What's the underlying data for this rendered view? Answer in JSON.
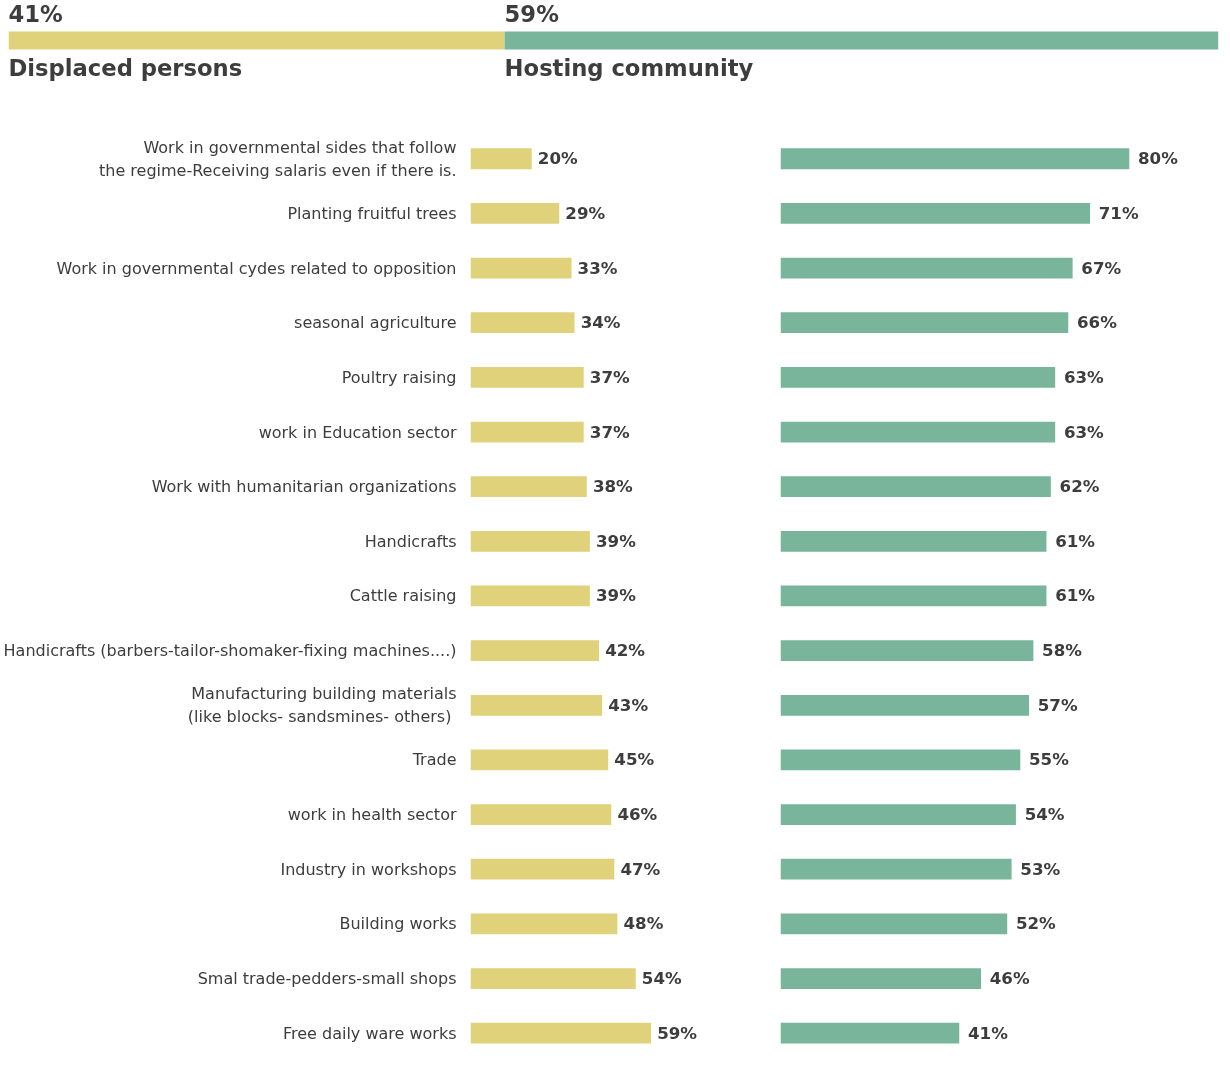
{
  "chart_data": [
    {
      "type": "bar",
      "orientation": "horizontal",
      "stacked": true,
      "categories": [
        null
      ],
      "tick_labels": false,
      "series": [
        {
          "name": "Displaced persons",
          "color": "#dfd27a",
          "values": [
            41
          ],
          "value_labels": [
            "41%"
          ]
        },
        {
          "name": "Hosting community",
          "color": "#78b59b",
          "values": [
            59
          ],
          "value_labels": [
            "59%"
          ]
        }
      ]
    },
    {
      "type": "bar",
      "orientation": "horizontal",
      "tick_labels": "y",
      "categories": [
        "Work in governmental sides that follow\nthe regime-Receiving salaris even if there is.",
        "Planting fruitful trees",
        "Work in governmental cydes related to opposition",
        "seasonal agriculture",
        "Poultry raising",
        "work in Education sector",
        "Work with humanitarian organizations",
        "Handicrafts",
        "Cattle raising",
        "Handicrafts (barbers-tailor-shomaker-fixing machines....)",
        "Manufacturing building materials\n(like blocks-  sandsmines- others)",
        "Trade",
        "work in health sector",
        "Industry in workshops",
        "Building works",
        "Smal trade-pedders-small shops",
        "Free daily ware works"
      ],
      "series": [
        {
          "color": "#dfd27a",
          "values": [
            20,
            29,
            33,
            34,
            37,
            37,
            38,
            39,
            39,
            42,
            43,
            45,
            46,
            47,
            48,
            54,
            59
          ],
          "value_labels": [
            "20%",
            "29%",
            "33%",
            "34%",
            "37%",
            "37%",
            "38%",
            "39%",
            "39%",
            "42%",
            "43%",
            "45%",
            "46%",
            "47%",
            "48%",
            "54%",
            "59%"
          ]
        }
      ]
    },
    {
      "type": "bar",
      "orientation": "horizontal",
      "tick_labels": false,
      "categories": [
        null,
        null,
        null,
        null,
        null,
        null,
        null,
        null,
        null,
        null,
        null,
        null,
        null,
        null,
        null,
        null,
        null
      ],
      "series": [
        {
          "color": "#78b59b",
          "values": [
            80,
            71,
            67,
            66,
            63,
            63,
            62,
            61,
            61,
            58,
            57,
            55,
            54,
            53,
            52,
            46,
            41
          ],
          "value_labels": [
            "80%",
            "71%",
            "67%",
            "66%",
            "63%",
            "63%",
            "62%",
            "61%",
            "61%",
            "58%",
            "57%",
            "55%",
            "54%",
            "53%",
            "52%",
            "46%",
            "41%"
          ]
        }
      ]
    }
  ]
}
